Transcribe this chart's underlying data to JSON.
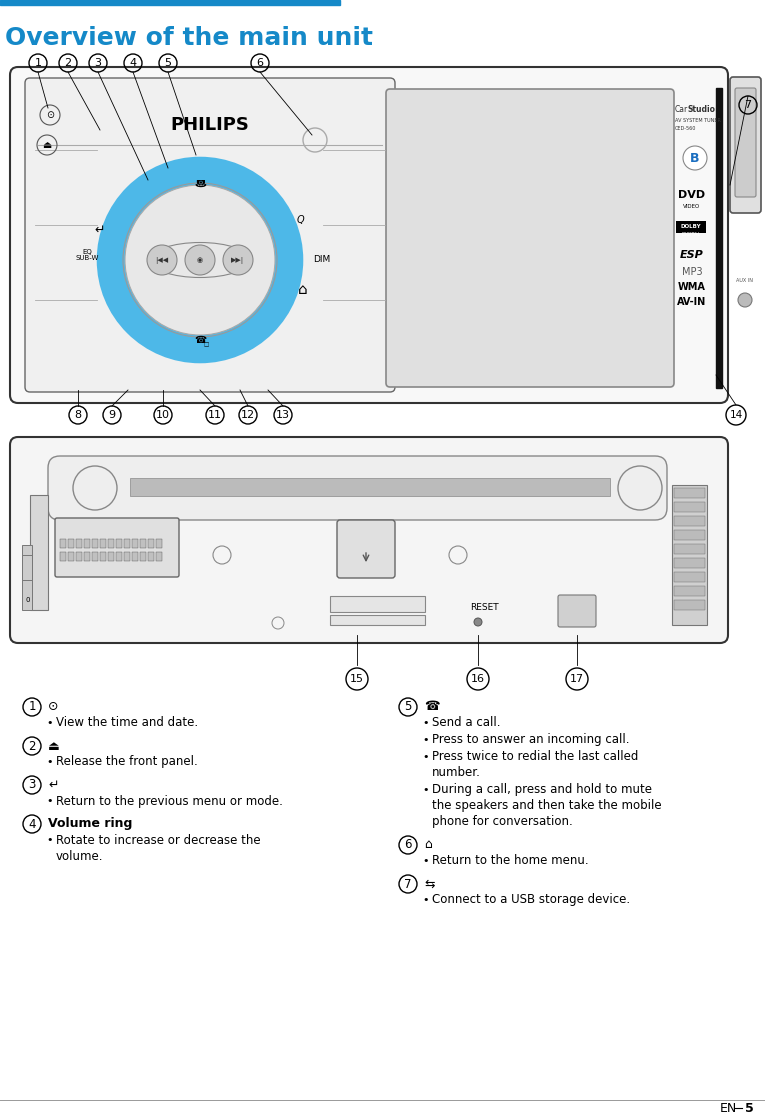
{
  "title": "Overview of the main unit",
  "title_color": "#1589c8",
  "title_bar_color": "#1589c8",
  "bg_color": "#ffffff",
  "blue_ring_color": "#4db8e8",
  "desc_items_left": [
    {
      "num": "1",
      "icon": "⊙",
      "bold": null,
      "bullets": [
        "View the time and date."
      ]
    },
    {
      "num": "2",
      "icon": "⏏",
      "bold": null,
      "bullets": [
        "Release the front panel."
      ]
    },
    {
      "num": "3",
      "icon": "↵",
      "bold": null,
      "bullets": [
        "Return to the previous menu or mode."
      ]
    },
    {
      "num": "4",
      "icon": null,
      "bold": "Volume ring",
      "bullets": [
        "Rotate to increase or decrease the volume."
      ]
    }
  ],
  "desc_items_right": [
    {
      "num": "5",
      "icon": "☎",
      "bold": null,
      "bullets": [
        "Send a call.",
        "Press to answer an incoming call.",
        "Press twice to redial the last called number.",
        "During a call, press and hold to mute the speakers and then take the mobile phone for conversation."
      ]
    },
    {
      "num": "6",
      "icon": "⌂",
      "bold": null,
      "bullets": [
        "Return to the home menu."
      ]
    },
    {
      "num": "7",
      "icon": "⇆",
      "bold": null,
      "bullets": [
        "Connect to a USB storage device."
      ]
    }
  ]
}
